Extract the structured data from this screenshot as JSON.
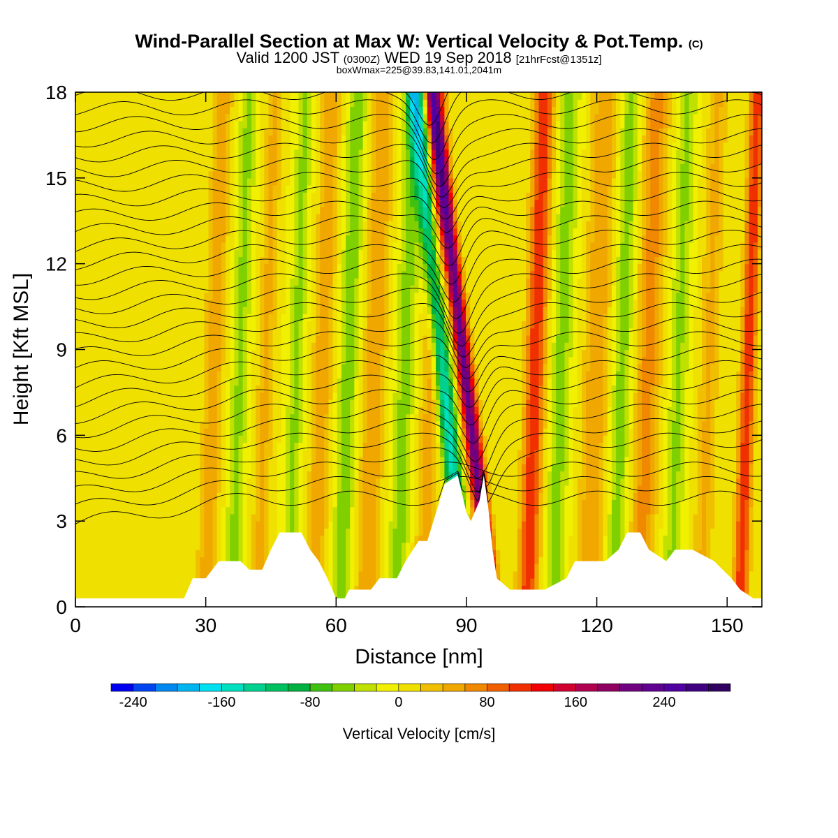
{
  "title": {
    "main": "Wind-Parallel Section at Max W: Vertical Velocity & Pot.Temp.",
    "copyright": "(C)",
    "valid_prefix": "Valid 1200 JST",
    "valid_utc": "(0300Z)",
    "valid_date": "WED 19 Sep 2018",
    "forecast": "[21hrFcst@1351z]",
    "box": "boxWmax=225@39.83,141.01,2041m"
  },
  "chart_data": {
    "type": "heatmap",
    "xlabel": "Distance [nm]",
    "ylabel": "Height [Kft MSL]",
    "xlim": [
      0,
      158
    ],
    "ylim": [
      0,
      18
    ],
    "xticks": [
      0,
      30,
      60,
      90,
      120,
      150
    ],
    "yticks": [
      0,
      3,
      6,
      9,
      12,
      15,
      18
    ],
    "colorbar": {
      "label": "Vertical Velocity [cm/s]",
      "min": -260,
      "max": 300,
      "step": 20,
      "tick_values": [
        -240,
        -160,
        -80,
        0,
        80,
        160,
        240
      ],
      "colors": [
        "#0000f0",
        "#0044f0",
        "#0088f0",
        "#00b4f0",
        "#00e0f0",
        "#00e0c0",
        "#00d090",
        "#00c060",
        "#00b040",
        "#40c010",
        "#80d000",
        "#c0e000",
        "#f0f000",
        "#f0e000",
        "#f0c000",
        "#f0a800",
        "#f08800",
        "#f06000",
        "#f03000",
        "#f00000",
        "#d00030",
        "#b00050",
        "#900060",
        "#700080",
        "#600090",
        "#5000a0",
        "#400080",
        "#300060"
      ]
    },
    "terrain_kft": [
      [
        0,
        0.3
      ],
      [
        25,
        0.3
      ],
      [
        27,
        1.0
      ],
      [
        30,
        1.0
      ],
      [
        33,
        1.6
      ],
      [
        38,
        1.6
      ],
      [
        40,
        1.3
      ],
      [
        43,
        1.3
      ],
      [
        45,
        2.0
      ],
      [
        47,
        2.6
      ],
      [
        52,
        2.6
      ],
      [
        54,
        2.0
      ],
      [
        56,
        1.6
      ],
      [
        58,
        1.0
      ],
      [
        60,
        0.3
      ],
      [
        62,
        0.3
      ],
      [
        63,
        0.6
      ],
      [
        68,
        0.6
      ],
      [
        70,
        1.0
      ],
      [
        74,
        1.0
      ],
      [
        76,
        1.6
      ],
      [
        79,
        2.3
      ],
      [
        81,
        2.3
      ],
      [
        83,
        3.3
      ],
      [
        85,
        4.3
      ],
      [
        88,
        4.6
      ],
      [
        90,
        3.3
      ],
      [
        91,
        3.0
      ],
      [
        93,
        3.7
      ],
      [
        94,
        4.6
      ],
      [
        95,
        3.5
      ],
      [
        96,
        2.0
      ],
      [
        97,
        1.0
      ],
      [
        100,
        0.6
      ],
      [
        108,
        0.6
      ],
      [
        113,
        1.0
      ],
      [
        115,
        1.6
      ],
      [
        122,
        1.6
      ],
      [
        125,
        2.0
      ],
      [
        127,
        2.6
      ],
      [
        130,
        2.6
      ],
      [
        132,
        2.0
      ],
      [
        136,
        1.6
      ],
      [
        138,
        2.0
      ],
      [
        142,
        2.0
      ],
      [
        147,
        1.6
      ],
      [
        151,
        1.0
      ],
      [
        153,
        0.6
      ],
      [
        156,
        0.3
      ],
      [
        158,
        0.3
      ]
    ],
    "updraft_bands": [
      {
        "x": 30,
        "w": 1.6,
        "amp": 55
      },
      {
        "x": 42,
        "w": 1.4,
        "amp": 45
      },
      {
        "x": 55,
        "w": 1.6,
        "amp": 55
      },
      {
        "x": 67,
        "w": 1.8,
        "amp": 60
      },
      {
        "x": 80,
        "w": 1.6,
        "amp": 50
      },
      {
        "x": 96,
        "w": 1.3,
        "amp": 225
      },
      {
        "x": 104,
        "w": 1.6,
        "amp": 120
      },
      {
        "x": 118,
        "w": 2.0,
        "amp": 60
      },
      {
        "x": 130,
        "w": 2.0,
        "amp": 70
      },
      {
        "x": 144,
        "w": 1.6,
        "amp": 45
      },
      {
        "x": 153,
        "w": 1.2,
        "amp": 120
      }
    ],
    "downdraft_bands": [
      {
        "x": 36,
        "w": 1.4,
        "amp": 45
      },
      {
        "x": 49,
        "w": 1.3,
        "amp": 45
      },
      {
        "x": 61,
        "w": 1.5,
        "amp": 55
      },
      {
        "x": 74,
        "w": 1.6,
        "amp": 50
      },
      {
        "x": 90,
        "w": 1.4,
        "amp": 150
      },
      {
        "x": 110,
        "w": 1.6,
        "amp": 50
      },
      {
        "x": 124,
        "w": 1.6,
        "amp": 50
      },
      {
        "x": 137,
        "w": 1.5,
        "amp": 45
      }
    ],
    "isentropes": {
      "count": 30,
      "bottom_kft": 3.8,
      "top_kft": 18.5,
      "note": "Potential temperature contours (black lines)"
    }
  }
}
